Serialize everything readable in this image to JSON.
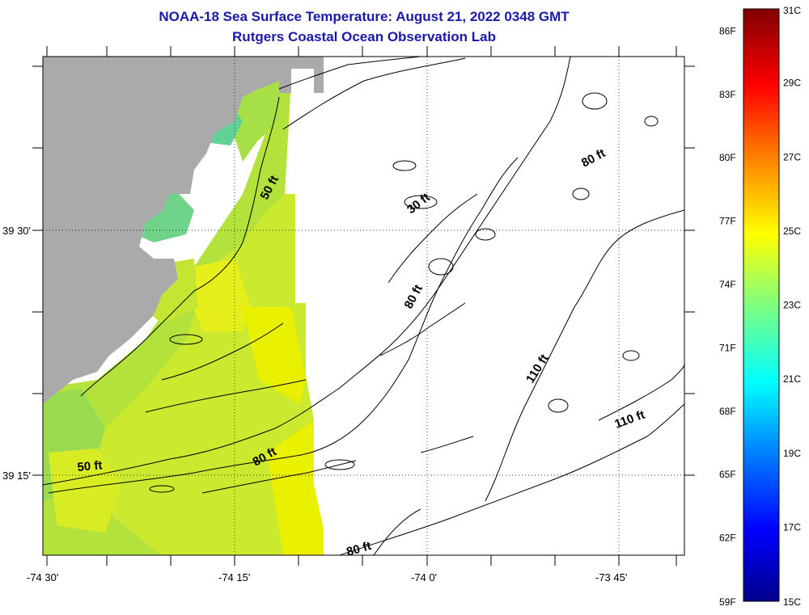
{
  "title": {
    "line1": "NOAA-18 Sea Surface Temperature:  August 21, 2022 0348 GMT",
    "line2": "Rutgers Coastal Ocean Observation Lab"
  },
  "map": {
    "lat_labels": [
      "39 30'",
      "39 15'"
    ],
    "lon_labels": [
      "-74 30'",
      "-74 15'",
      "-74 0'",
      "-73 45'"
    ],
    "contour_labels": [
      "50 ft",
      "30 ft",
      "80 ft",
      "80 ft",
      "110 ft",
      "110 ft",
      "50 ft",
      "80 ft",
      "80 ft"
    ],
    "colors": {
      "land": "#aaaaaa",
      "frame": "#000000",
      "sst_warm": "#e8f000",
      "sst_mid": "#b9e33a",
      "sst_cool": "#5fd38f"
    }
  },
  "colorbar": {
    "fahrenheit_labels": [
      "59F",
      "62F",
      "65F",
      "68F",
      "71F",
      "74F",
      "77F",
      "80F",
      "83F",
      "86F"
    ],
    "celsius_labels": [
      "15C",
      "17C",
      "19C",
      "21C",
      "23C",
      "25C",
      "27C",
      "29C",
      "31C"
    ],
    "colors": [
      "#00008a",
      "#0000ff",
      "#0080ff",
      "#00ffff",
      "#7fff7f",
      "#ffff00",
      "#ff8000",
      "#ff0000",
      "#800000"
    ]
  }
}
